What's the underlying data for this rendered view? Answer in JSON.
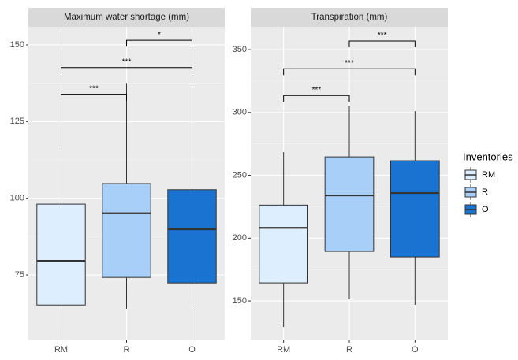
{
  "chart_data": [
    {
      "type": "box",
      "title": "Maximum water shortage (mm)",
      "categories": [
        "RM",
        "R",
        "O"
      ],
      "colors": [
        "#ddeeff",
        "#a8cff8",
        "#1a73d1"
      ],
      "low": [
        57.8,
        64.0,
        64.5
      ],
      "q1": [
        65.2,
        74.2,
        72.4
      ],
      "median": [
        79.6,
        95.1,
        89.9
      ],
      "q3": [
        98.1,
        104.8,
        102.8
      ],
      "high": [
        116.4,
        137.6,
        136.4
      ],
      "ylim": [
        53.7,
        155.9
      ],
      "yticks": [
        75,
        100,
        125,
        150
      ],
      "grid": true,
      "comparisons": [
        {
          "from": 0,
          "to": 1,
          "y": 133.9,
          "label": "***"
        },
        {
          "from": 0,
          "to": 2,
          "y": 142.6,
          "label": "***"
        },
        {
          "from": 1,
          "to": 2,
          "y": 151.5,
          "label": "*"
        }
      ]
    },
    {
      "type": "box",
      "title": "Transpiration (mm)",
      "categories": [
        "RM",
        "R",
        "O"
      ],
      "colors": [
        "#ddeeff",
        "#a8cff8",
        "#1a73d1"
      ],
      "low": [
        129.3,
        151.3,
        146.9
      ],
      "q1": [
        164.4,
        189.5,
        185.1
      ],
      "median": [
        208.2,
        234.0,
        235.9
      ],
      "q3": [
        226.3,
        264.7,
        261.6
      ],
      "high": [
        268.5,
        305.3,
        301.1
      ],
      "ylim": [
        118.7,
        368.2
      ],
      "yticks": [
        150,
        200,
        250,
        300,
        350
      ],
      "grid": true,
      "comparisons": [
        {
          "from": 0,
          "to": 1,
          "y": 313.5,
          "label": "***"
        },
        {
          "from": 0,
          "to": 2,
          "y": 334.8,
          "label": "***"
        },
        {
          "from": 1,
          "to": 2,
          "y": 356.9,
          "label": "***"
        }
      ]
    }
  ],
  "legend": {
    "title": "Inventories",
    "position": "right"
  }
}
